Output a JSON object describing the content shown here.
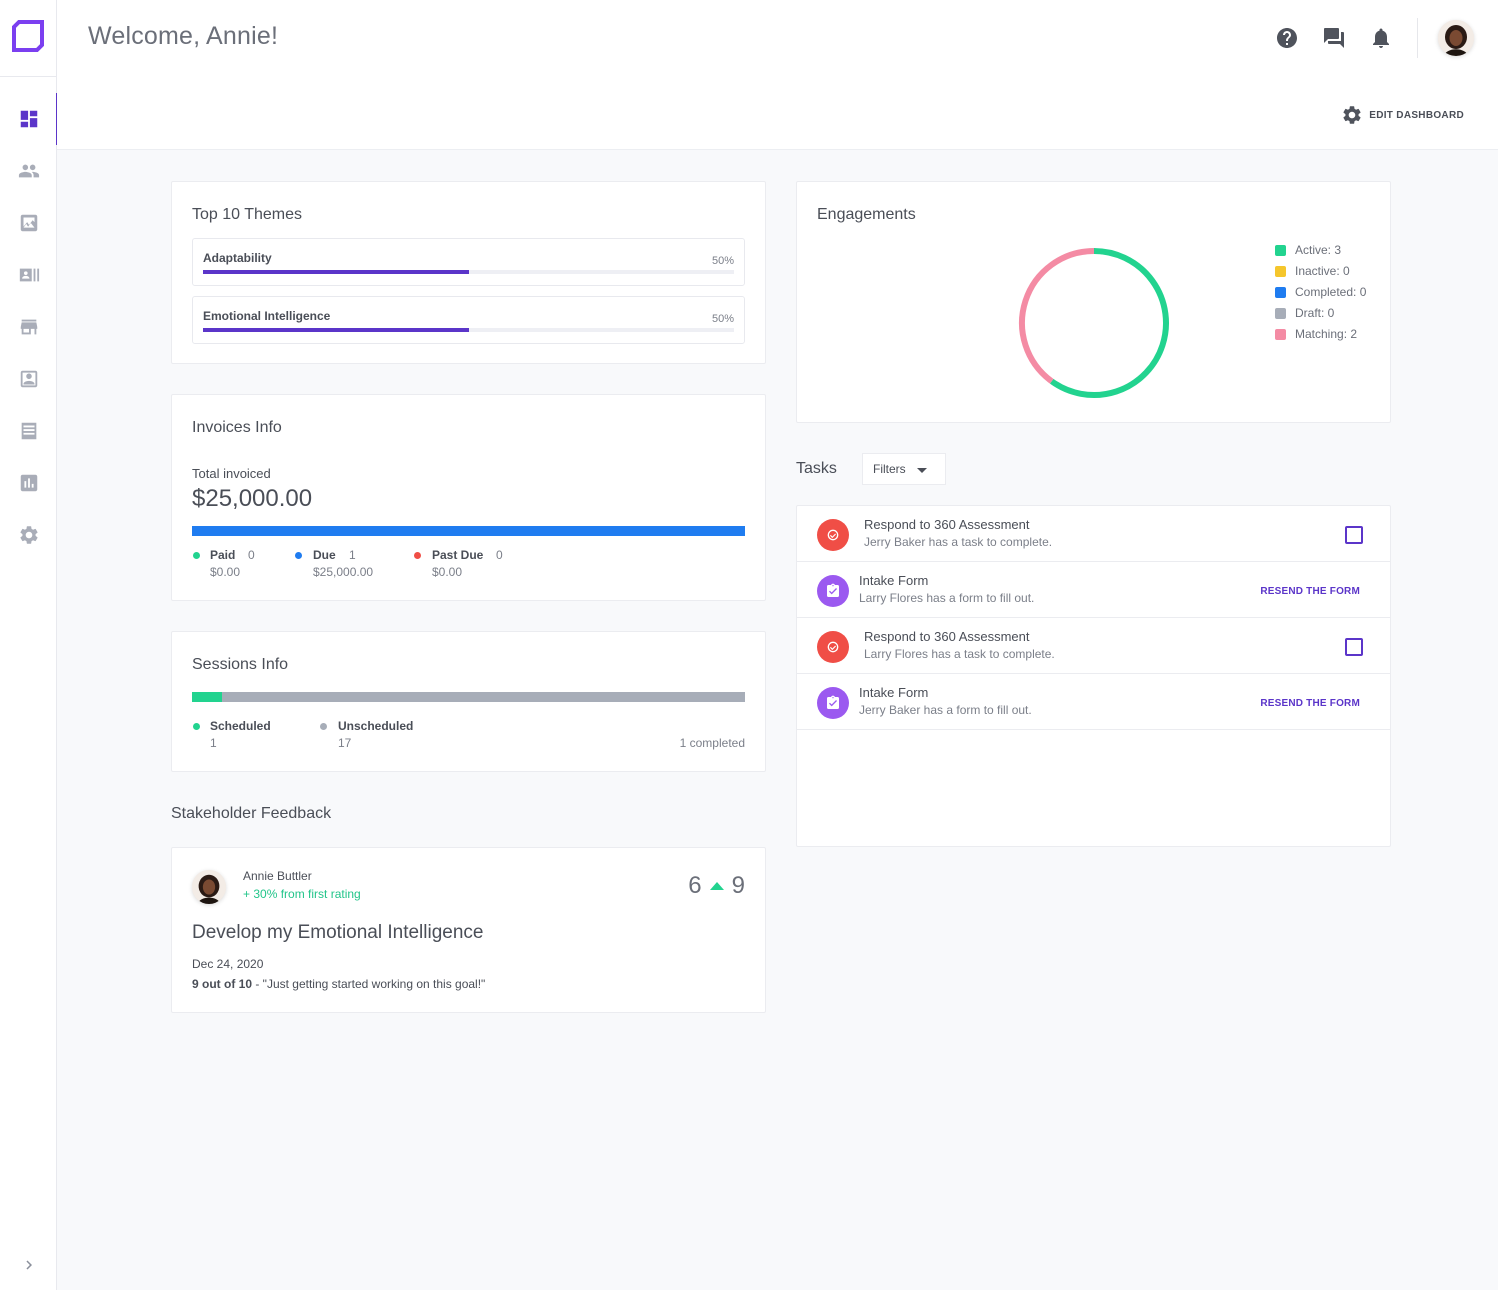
{
  "header": {
    "welcome": "Welcome, Annie!",
    "edit_dashboard": "EDIT DASHBOARD"
  },
  "sidebar": {
    "items": [
      {
        "icon": "dashboard-icon"
      },
      {
        "icon": "people-icon"
      },
      {
        "icon": "image-icon"
      },
      {
        "icon": "contacts-icon"
      },
      {
        "icon": "store-icon"
      },
      {
        "icon": "account-box-icon"
      },
      {
        "icon": "list-icon"
      },
      {
        "icon": "chart-icon"
      },
      {
        "icon": "gear-icon"
      }
    ]
  },
  "themes": {
    "title": "Top 10 Themes",
    "items": [
      {
        "name": "Adaptability",
        "pct_label": "50%",
        "pct": 0.5
      },
      {
        "name": "Emotional Intelligence",
        "pct_label": "50%",
        "pct": 0.5
      }
    ]
  },
  "invoices": {
    "title": "Invoices Info",
    "total_label": "Total invoiced",
    "total": "$25,000.00",
    "bar_color": "#1f7cf0",
    "legend": [
      {
        "name": "Paid",
        "count": "0",
        "amount": "$0.00",
        "color": "#22d38f"
      },
      {
        "name": "Due",
        "count": "1",
        "amount": "$25,000.00",
        "color": "#1f7cf0"
      },
      {
        "name": "Past Due",
        "count": "0",
        "amount": "$0.00",
        "color": "#f04e46"
      }
    ]
  },
  "sessions": {
    "title": "Sessions Info",
    "scheduled_fraction": 0.055,
    "legend": [
      {
        "name": "Scheduled",
        "count": "1",
        "color": "#22d38f"
      },
      {
        "name": "Unscheduled",
        "count": "17",
        "color": "#a7adb8"
      }
    ],
    "completed": "1 completed"
  },
  "feedback": {
    "section_title": "Stakeholder Feedback",
    "name": "Annie Buttler",
    "change": "+ 30%  from first rating",
    "score_from": "6",
    "score_to": "9",
    "goal": "Develop my Emotional Intelligence",
    "date": "Dec 24, 2020",
    "rating_bold": "9 out of 10",
    "rating_rest": " - \"Just getting started working on this goal!\""
  },
  "engagements": {
    "title": "Engagements",
    "legend": [
      {
        "label": "Active: 3",
        "color": "#22d38f",
        "value": 3
      },
      {
        "label": "Inactive: 0",
        "color": "#f5c62c",
        "value": 0
      },
      {
        "label": "Completed: 0",
        "color": "#1f7cf0",
        "value": 0
      },
      {
        "label": "Draft: 0",
        "color": "#a7adb8",
        "value": 0
      },
      {
        "label": "Matching: 2",
        "color": "#f48ba4",
        "value": 2
      }
    ]
  },
  "tasks": {
    "title": "Tasks",
    "filters": "Filters",
    "items": [
      {
        "title": "Respond to 360 Assessment",
        "subtitle": "Jerry Baker has a task to complete.",
        "kind": "assessment",
        "action": "checkbox"
      },
      {
        "title": "Intake Form",
        "subtitle": "Larry Flores has a form to fill out.",
        "kind": "form",
        "action": "RESEND THE FORM"
      },
      {
        "title": "Respond to 360 Assessment",
        "subtitle": "Larry Flores has a task to complete.",
        "kind": "assessment",
        "action": "checkbox"
      },
      {
        "title": "Intake Form",
        "subtitle": "Jerry Baker has a form to fill out.",
        "kind": "form",
        "action": "RESEND THE FORM"
      }
    ]
  },
  "colors": {
    "accent": "#5b35c9",
    "assessment_icon": "#f04e46",
    "form_icon": "#9b59f0"
  }
}
